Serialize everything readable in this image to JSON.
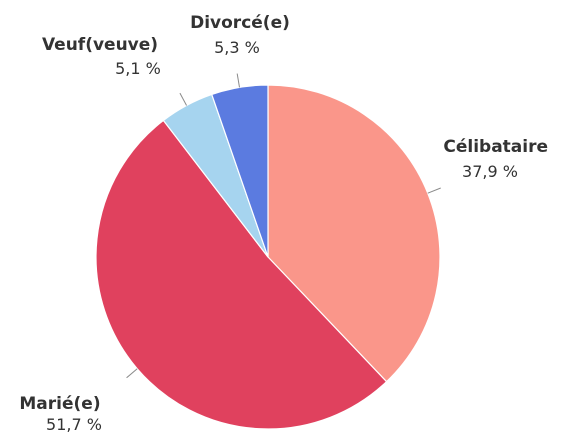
{
  "chart_data": {
    "type": "pie",
    "start_angle_deg": 0,
    "direction": "clockwise",
    "slices": [
      {
        "label": "Célibataire",
        "value": 37.9,
        "value_label": "37,9 %",
        "color": "#fa968a"
      },
      {
        "label": "Marié(e)",
        "value": 51.7,
        "value_label": "51,7 %",
        "color": "#e0415e"
      },
      {
        "label": "Veuf(veuve)",
        "value": 5.1,
        "value_label": "5,1 %",
        "color": "#a6d4ef"
      },
      {
        "label": "Divorcé(e)",
        "value": 5.3,
        "value_label": "5,3 %",
        "color": "#5b7be0"
      }
    ]
  }
}
